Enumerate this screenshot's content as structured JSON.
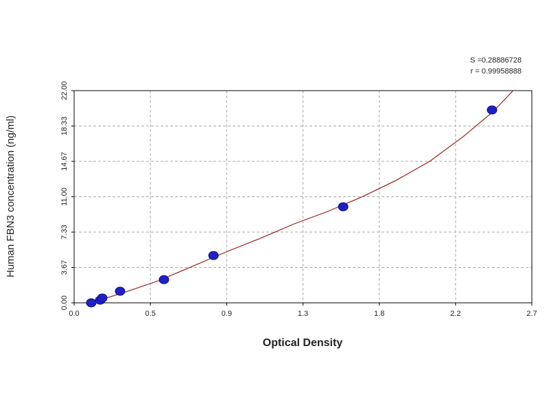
{
  "chart_data": {
    "type": "scatter",
    "xlabel": "Optical Density",
    "ylabel": "Human FBN3 concentration (ng/ml)",
    "annotations": [
      "S =0.28886728",
      "r = 0.99958888"
    ],
    "series": [
      {
        "color": "#2020c8",
        "x": [
          0.101,
          0.154,
          0.166,
          0.271,
          0.53,
          0.822,
          1.587,
          2.465
        ],
        "values": [
          0,
          0.28,
          0.5,
          1.2,
          2.4,
          4.9,
          9.96,
          20.0
        ]
      }
    ],
    "curve": {
      "color": "#a03030",
      "x": [
        0.1,
        0.3,
        0.5,
        0.7,
        0.9,
        1.1,
        1.3,
        1.5,
        1.7,
        1.9,
        2.1,
        2.3,
        2.47,
        2.6
      ],
      "values": [
        0,
        1.1,
        2.3,
        3.8,
        5.3,
        6.7,
        8.2,
        9.5,
        11.0,
        12.7,
        14.7,
        17.3,
        19.8,
        22.2
      ]
    },
    "xlim": [
      0,
      2.7
    ],
    "xticks": [
      {
        "value": 0,
        "label": "0.0"
      },
      {
        "value": 0.45,
        "label": "0.5"
      },
      0.9,
      {
        "value": 1.35,
        "label": "1.3"
      },
      1.8,
      {
        "value": 2.25,
        "label": "2.2"
      },
      2.7
    ],
    "ylim": [
      0,
      22
    ],
    "yticks": [
      {
        "value": 0,
        "label": "0.00"
      },
      {
        "value": 3.667,
        "label": "3.67"
      },
      {
        "value": 7.333,
        "label": "7.33"
      },
      {
        "value": 11,
        "label": "11.00"
      },
      {
        "value": 14.667,
        "label": "14.67"
      },
      {
        "value": 18.333,
        "label": "18.33"
      },
      {
        "value": 22,
        "label": "22.00"
      }
    ],
    "grid": true
  }
}
